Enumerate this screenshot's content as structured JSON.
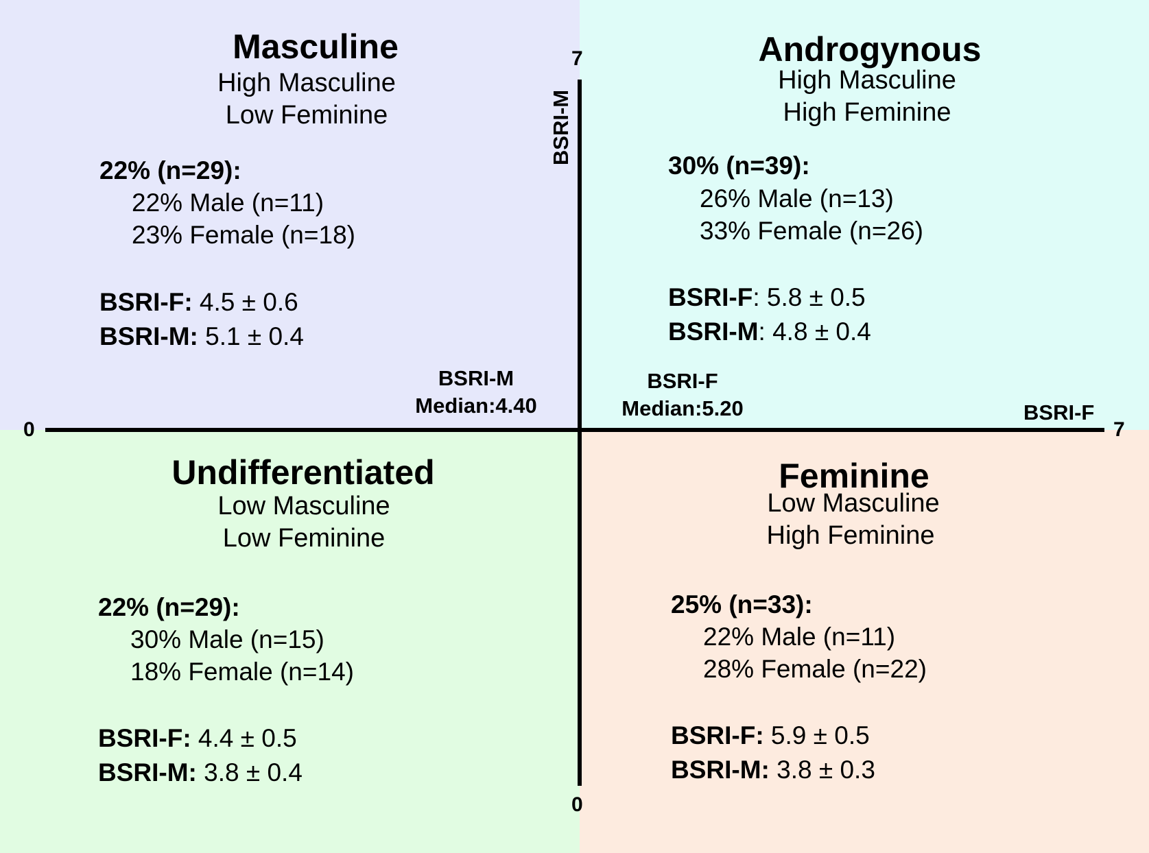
{
  "colors": {
    "masculine_bg": "#e6e8fb",
    "androgynous_bg": "#dffcf8",
    "undifferentiated_bg": "#e1fce2",
    "feminine_bg": "#fdebdf",
    "axis": "#000000"
  },
  "axes": {
    "x_label": "BSRI-F",
    "y_label": "BSRI-M",
    "x_min": "0",
    "x_max": "7",
    "y_min": "0",
    "y_max": "7",
    "m_median_label": "BSRI-M",
    "m_median_value": "Median:4.40",
    "f_median_label": "BSRI-F",
    "f_median_value": "Median:5.20"
  },
  "quadrants": {
    "masculine": {
      "title": "Masculine",
      "line1": "High Masculine",
      "line2": "Low Feminine",
      "total": "22% (n=29):",
      "male": "22% Male (n=11)",
      "female": "23% Female (n=18)",
      "f_label": "BSRI-F:",
      "f_value": " 4.5 ± 0.6",
      "m_label": "BSRI-M:",
      "m_value": " 5.1 ± 0.4"
    },
    "androgynous": {
      "title": "Androgynous",
      "line1": "High Masculine",
      "line2": "High Feminine",
      "total": "30% (n=39):",
      "male": "26% Male (n=13)",
      "female": "33% Female (n=26)",
      "f_label": "BSRI-F",
      "f_value": ": 5.8 ± 0.5",
      "m_label": "BSRI-M",
      "m_value": ": 4.8 ± 0.4"
    },
    "undifferentiated": {
      "title": "Undifferentiated",
      "line1": "Low Masculine",
      "line2": "Low Feminine",
      "total": "22% (n=29):",
      "male": "30% Male (n=15)",
      "female": "18% Female (n=14)",
      "f_label": "BSRI-F:",
      "f_value": " 4.4 ± 0.5",
      "m_label": "BSRI-M:",
      "m_value": " 3.8 ± 0.4"
    },
    "feminine": {
      "title": "Feminine",
      "line1": "Low Masculine",
      "line2": "High Feminine",
      "total": "25% (n=33):",
      "male": "22% Male (n=11)",
      "female": "28% Female (n=22)",
      "f_label": "BSRI-F:",
      "f_value": " 5.9 ± 0.5",
      "m_label": "BSRI-M:",
      "m_value": " 3.8 ± 0.3"
    }
  }
}
